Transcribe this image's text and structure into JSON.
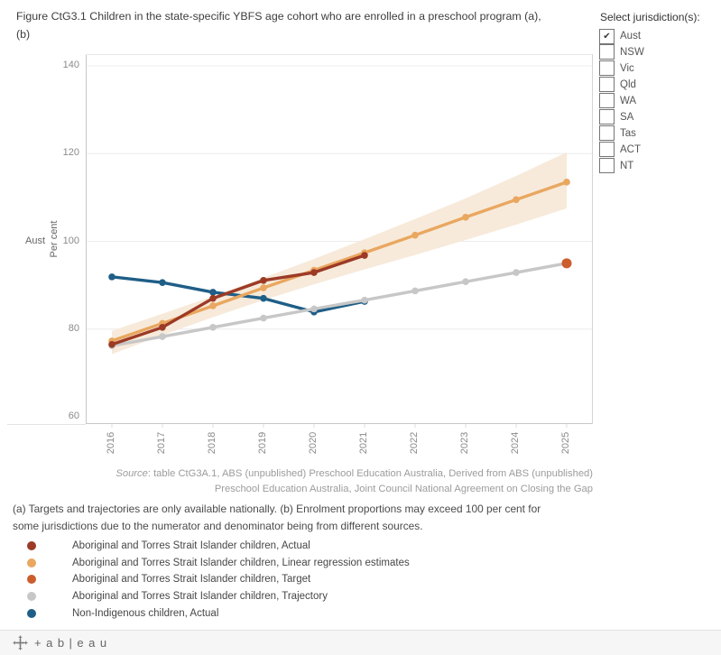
{
  "title": {
    "line1": "Figure CtG3.1 Children in the state-specific YBFS age cohort who are enrolled in a preschool program (a),",
    "line2": "(b)"
  },
  "filter": {
    "label": "Select jurisdiction(s):",
    "options": [
      {
        "label": "Aust",
        "checked": true
      },
      {
        "label": "NSW",
        "checked": false
      },
      {
        "label": "Vic",
        "checked": false
      },
      {
        "label": "Qld",
        "checked": false
      },
      {
        "label": "WA",
        "checked": false
      },
      {
        "label": "SA",
        "checked": false
      },
      {
        "label": "Tas",
        "checked": false
      },
      {
        "label": "ACT",
        "checked": false
      },
      {
        "label": "NT",
        "checked": false
      }
    ]
  },
  "chart_data": {
    "type": "line",
    "row_label": "Aust",
    "ylabel": "Per cent",
    "ylim": [
      60,
      140
    ],
    "yticks": [
      60,
      80,
      100,
      120,
      140
    ],
    "x": [
      2016,
      2017,
      2018,
      2019,
      2020,
      2021,
      2022,
      2023,
      2024,
      2025
    ],
    "grid": "horizontal",
    "series": [
      {
        "name": "Aboriginal and Torres Strait Islander children, Actual",
        "color": "#9C3A26",
        "z": 4,
        "marker_r": 3.8,
        "x": [
          2016,
          2017,
          2018,
          2019,
          2020,
          2021
        ],
        "values": [
          76.5,
          80.4,
          87.0,
          91.1,
          92.9,
          96.8
        ]
      },
      {
        "name": "Aboriginal and Torres Strait Islander children, Linear regression estimates",
        "color": "#E9A760",
        "z": 3,
        "marker_r": 3.8,
        "x": [
          2016,
          2017,
          2018,
          2019,
          2020,
          2021,
          2022,
          2023,
          2024,
          2025
        ],
        "values": [
          77.3,
          81.3,
          85.3,
          89.4,
          93.4,
          97.4,
          101.4,
          105.5,
          109.5,
          113.5
        ],
        "band_lower": [
          74.3,
          78.6,
          82.7,
          86.6,
          90.2,
          93.6,
          96.9,
          100.3,
          103.8,
          107.5
        ],
        "band_upper": [
          79.6,
          83.5,
          87.5,
          91.7,
          96.0,
          100.5,
          105.1,
          109.8,
          114.9,
          120.3
        ],
        "band_color": "#F7EADA"
      },
      {
        "name": "Aboriginal and Torres Strait Islander children, Target",
        "color": "#CC5D2D",
        "z": 5,
        "marker_r": 5.5,
        "x": [
          2025
        ],
        "values": [
          95
        ]
      },
      {
        "name": "Aboriginal and Torres Strait Islander children, Trajectory",
        "color": "#C7C7C7",
        "z": 2,
        "marker_r": 3.8,
        "x": [
          2016,
          2017,
          2018,
          2019,
          2020,
          2021,
          2022,
          2023,
          2024,
          2025
        ],
        "values": [
          76.2,
          78.3,
          80.4,
          82.5,
          84.6,
          86.6,
          88.7,
          90.8,
          92.9,
          95.0
        ]
      },
      {
        "name": "Non-Indigenous children, Actual",
        "color": "#1F5E87",
        "z": 1,
        "marker_r": 3.8,
        "x": [
          2016,
          2017,
          2018,
          2019,
          2020,
          2021
        ],
        "values": [
          91.9,
          90.6,
          88.4,
          87.0,
          83.9,
          86.3
        ]
      }
    ]
  },
  "source": {
    "label": "Source",
    "line1_rest": ": table CtG3A.1, ABS (unpublished) Preschool Education Australia, Derived from ABS (unpublished)",
    "line2": "Preschool Education Australia, Joint Council National Agreement on Closing the Gap"
  },
  "footnote": {
    "line1": "(a) Targets and trajectories are only available nationally. (b) Enrolment proportions may exceed 100 per cent for",
    "line2": "some jurisdictions due to the numerator and denominator being from different sources."
  },
  "toolbar": {
    "logo": "tableau-logo",
    "brand_text": "+ab|eau"
  }
}
